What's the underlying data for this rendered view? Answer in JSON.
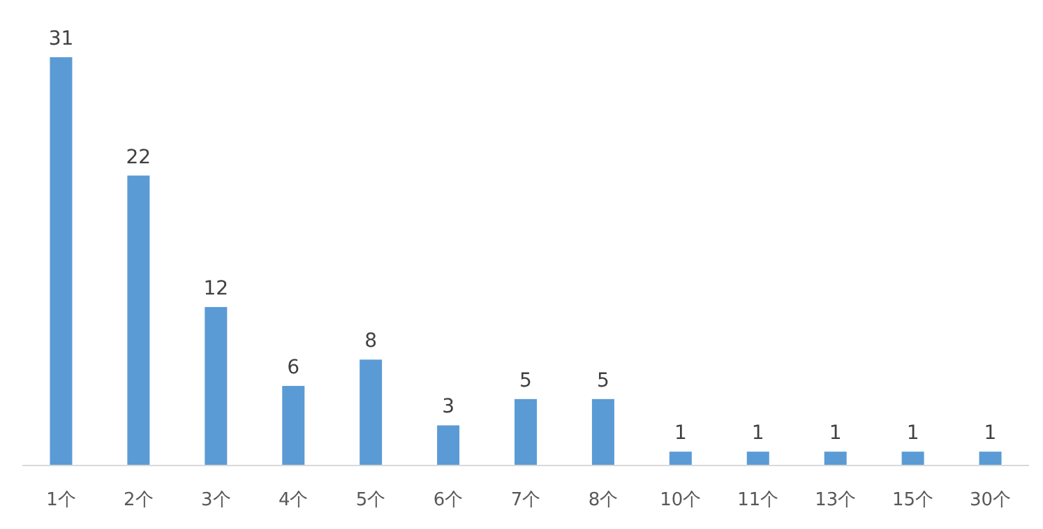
{
  "chart_data": {
    "type": "bar",
    "categories": [
      "1个",
      "2个",
      "3个",
      "4个",
      "5个",
      "6个",
      "7个",
      "8个",
      "10个",
      "11个",
      "13个",
      "15个",
      "30个"
    ],
    "values": [
      31,
      22,
      12,
      6,
      8,
      3,
      5,
      5,
      1,
      1,
      1,
      1,
      1
    ],
    "color": "#5b9bd5",
    "data_labels": true
  }
}
